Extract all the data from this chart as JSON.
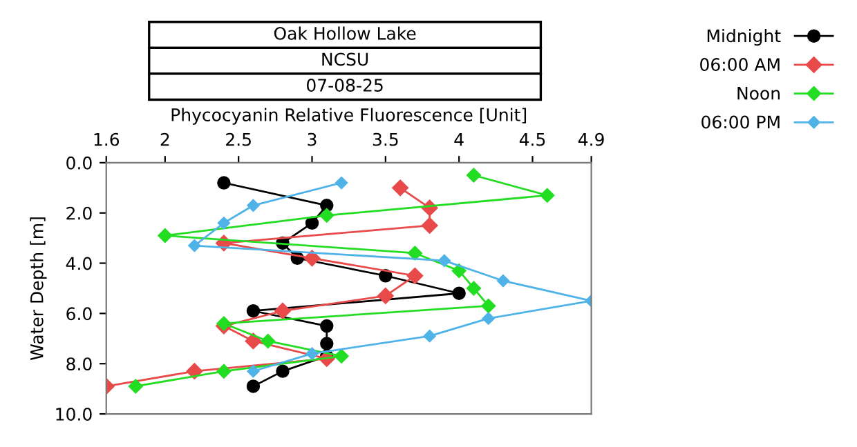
{
  "chart_data": {
    "type": "line",
    "title": "Oak Hollow Lake",
    "subtitle": "NCSU",
    "annotations": [
      "07-08-25"
    ],
    "xlabel": "Phycocyanin Relative Fluorescence [Unit]",
    "ylabel": "Water Depth [m]",
    "xlim": [
      1.6,
      4.9
    ],
    "xticks": [
      1.6,
      2,
      2.5,
      3,
      3.5,
      4,
      4.5,
      4.9
    ],
    "ylim": [
      10,
      0
    ],
    "yticks": [
      {
        "value": 0,
        "label": "0.0"
      },
      {
        "value": 2,
        "label": "2.0"
      },
      {
        "value": 4,
        "label": "4.0"
      },
      {
        "value": 6,
        "label": "6.0"
      },
      {
        "value": 8,
        "label": "8.0"
      },
      {
        "value": 10,
        "label": "10.0"
      }
    ],
    "grid": false,
    "legend": "top right",
    "series": [
      {
        "name": "Midnight",
        "color": "#000000",
        "marker": "circle",
        "x": [
          2.4,
          3.1,
          3.0,
          2.8,
          2.9,
          3.5,
          4.0,
          2.6,
          3.1,
          3.1,
          3.1,
          2.8,
          2.6
        ],
        "values": [
          0.8,
          1.7,
          2.4,
          3.2,
          3.8,
          4.5,
          5.2,
          5.9,
          6.5,
          7.2,
          7.7,
          8.3,
          8.9
        ]
      },
      {
        "name": "06:00 AM",
        "color": "#e84a4a",
        "marker": "diamond",
        "x": [
          3.6,
          3.8,
          3.8,
          2.4,
          3.0,
          3.7,
          3.5,
          2.8,
          2.4,
          2.6,
          3.1,
          2.2,
          1.6
        ],
        "values": [
          1.0,
          1.8,
          2.5,
          3.2,
          3.8,
          4.5,
          5.3,
          5.9,
          6.5,
          7.1,
          7.8,
          8.3,
          8.9
        ]
      },
      {
        "name": "Noon",
        "color": "#22dd22",
        "marker": "diamond",
        "x": [
          4.1,
          4.6,
          3.1,
          2.0,
          3.7,
          4.0,
          4.1,
          4.2,
          2.4,
          2.7,
          3.2,
          2.4,
          1.8
        ],
        "values": [
          0.5,
          1.3,
          2.1,
          2.9,
          3.6,
          4.3,
          5.0,
          5.7,
          6.4,
          7.1,
          7.7,
          8.3,
          8.9
        ]
      },
      {
        "name": "06:00 PM",
        "color": "#4fb3e8",
        "marker": "diamond",
        "x": [
          3.2,
          2.6,
          2.4,
          2.2,
          3.9,
          4.3,
          4.9,
          4.2,
          3.8,
          3.0,
          2.6
        ],
        "values": [
          0.8,
          1.7,
          2.4,
          3.3,
          3.9,
          4.7,
          5.5,
          6.2,
          6.9,
          7.6,
          8.3
        ]
      }
    ]
  }
}
